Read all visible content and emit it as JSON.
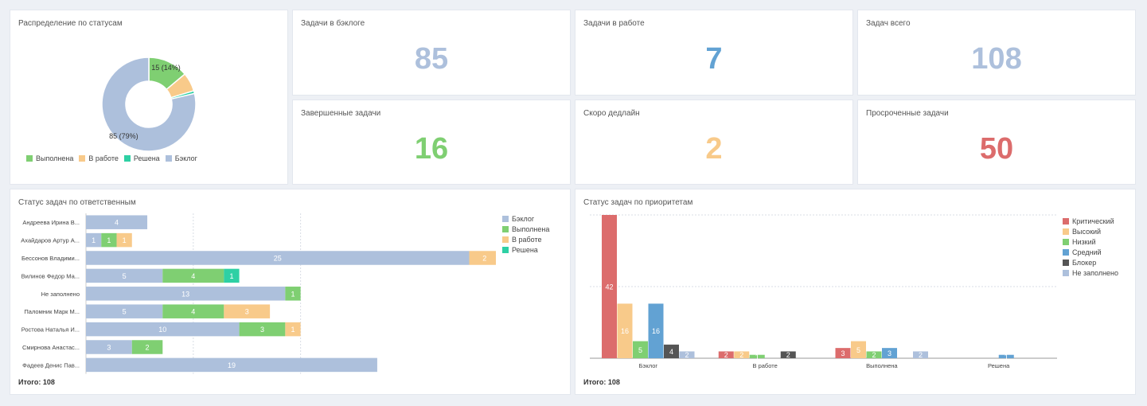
{
  "colors": {
    "done": "#7fcf72",
    "in_progress": "#f8ca8a",
    "resolved": "#2ed0a4",
    "backlog": "#adc0dc",
    "critical": "#dc6c6c",
    "high": "#f8ca8a",
    "low": "#7fcf72",
    "medium": "#62a2d3",
    "blocker": "#555555",
    "empty": "#adc0dc"
  },
  "donut": {
    "title": "Распределение по статусам",
    "chart_data": {
      "type": "pie",
      "categories": [
        "Выполнена",
        "В работе",
        "Решена",
        "Бэклог"
      ],
      "values": [
        15,
        7,
        1,
        85
      ],
      "data_labels": [
        "15 (14%)",
        "",
        "",
        "85 (79%)"
      ],
      "legend_position": "bottom"
    }
  },
  "kpis": [
    {
      "title": "Задачи в бэклоге",
      "value": "85",
      "color": "#adc0dc"
    },
    {
      "title": "Задачи в работе",
      "value": "7",
      "color": "#62a2d3"
    },
    {
      "title": "Задач всего",
      "value": "108",
      "color": "#adc0dc"
    },
    {
      "title": "Завершенные задачи",
      "value": "16",
      "color": "#7fcf72"
    },
    {
      "title": "Скоро дедлайн",
      "value": "2",
      "color": "#f8ca8a"
    },
    {
      "title": "Просроченные задачи",
      "value": "50",
      "color": "#dc6c6c"
    }
  ],
  "assignees": {
    "title": "Статус задач по ответственным",
    "total": "Итого: 108",
    "chart_data": {
      "type": "bar",
      "orientation": "horizontal",
      "stacked": true,
      "categories": [
        "Андреева Ирина В...",
        "Ахайдаров Артур А...",
        "Бессонов Владими...",
        "Вилинов Федор Ма...",
        "Не заполнено",
        "Паломник Марк М...",
        "Ростова Наталья И...",
        "Смирнова Анастас...",
        "Фадеев Денис Пав..."
      ],
      "series": [
        {
          "name": "Бэклог",
          "values": [
            4,
            1,
            25,
            5,
            13,
            5,
            10,
            3,
            19
          ]
        },
        {
          "name": "Выполнена",
          "values": [
            0,
            1,
            0,
            4,
            1,
            4,
            3,
            2,
            0
          ]
        },
        {
          "name": "В работе",
          "values": [
            0,
            1,
            2,
            0,
            0,
            3,
            1,
            0,
            0
          ]
        },
        {
          "name": "Решена",
          "values": [
            0,
            0,
            0,
            1,
            0,
            0,
            0,
            0,
            0
          ]
        }
      ],
      "xlim": [
        0,
        27
      ],
      "grid": true,
      "legend_position": "top-right"
    }
  },
  "priorities": {
    "title": "Статус задач по приоритетам",
    "total": "Итого: 108",
    "chart_data": {
      "type": "bar",
      "stacked": false,
      "categories": [
        "Бэклог",
        "В работе",
        "Выполнена",
        "Решена"
      ],
      "series": [
        {
          "name": "Критический",
          "values": [
            42,
            2,
            3,
            0
          ]
        },
        {
          "name": "Высокий",
          "values": [
            16,
            2,
            5,
            0
          ]
        },
        {
          "name": "Низкий",
          "values": [
            5,
            1,
            2,
            0
          ]
        },
        {
          "name": "Средний",
          "values": [
            16,
            0,
            3,
            1
          ]
        },
        {
          "name": "Блокер",
          "values": [
            4,
            2,
            0,
            0
          ]
        },
        {
          "name": "Не заполнено",
          "values": [
            2,
            0,
            2,
            0
          ]
        }
      ],
      "ylim": [
        0,
        42
      ],
      "grid": true,
      "legend_position": "top-right"
    }
  }
}
